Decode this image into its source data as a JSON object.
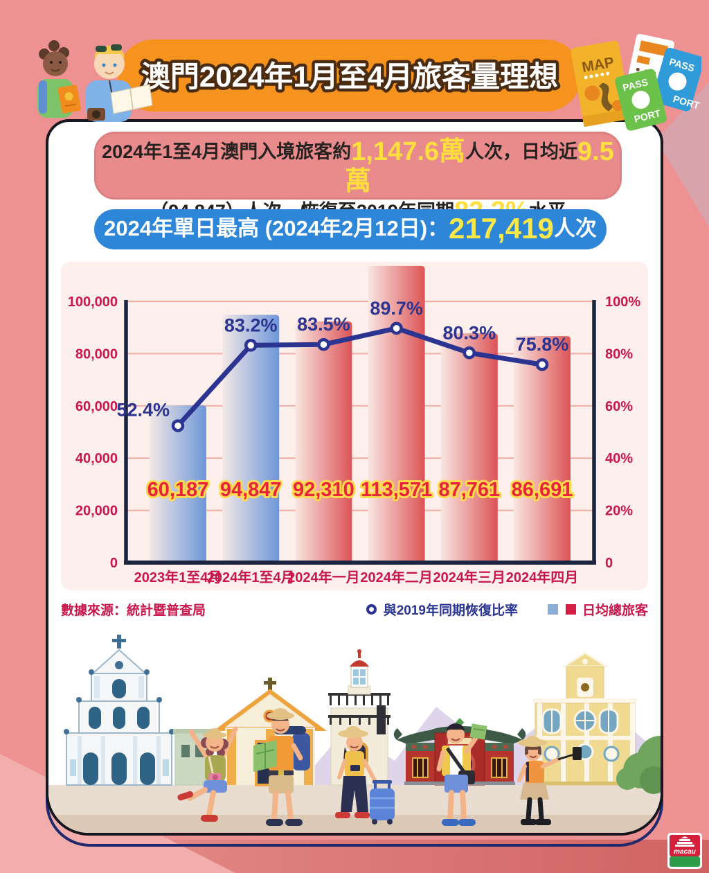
{
  "header": {
    "title": "澳門2024年1月至4月旅客量理想"
  },
  "summary": {
    "line1": [
      {
        "t": "2024年1至4月澳門入境旅客約",
        "em": false
      },
      {
        "t": "1,147.6萬",
        "em": true
      },
      {
        "t": "人次，日均近",
        "em": false
      },
      {
        "t": "9.5萬",
        "em": true
      }
    ],
    "line2": [
      {
        "t": "（94,847）人次，恢復至2019年同期",
        "em": false
      },
      {
        "t": "83.2%",
        "em": true
      },
      {
        "t": "水平",
        "em": false
      }
    ]
  },
  "record": {
    "segments": [
      {
        "t": "2024年單日最高 (2024年2月12日)：",
        "em": false
      },
      {
        "t": "217,419",
        "em": true
      },
      {
        "t": "人次",
        "em": false
      }
    ]
  },
  "chart_data": {
    "type": "bar+line",
    "categories": [
      "2023年1至4月",
      "2024年1至4月",
      "2024年一月",
      "2024年二月",
      "2024年三月",
      "2024年四月"
    ],
    "series": [
      {
        "name": "日均總旅客",
        "type": "bar",
        "values": [
          60187,
          94847,
          92310,
          113571,
          87761,
          86691
        ],
        "color_groups": [
          "blue",
          "blue",
          "red",
          "red",
          "red",
          "red"
        ]
      },
      {
        "name": "與2019年同期恢復比率",
        "type": "line",
        "values_pct": [
          52.4,
          83.2,
          83.5,
          89.7,
          80.3,
          75.8
        ]
      }
    ],
    "left_axis": {
      "ticks": [
        "0",
        "20,000",
        "40,000",
        "60,000",
        "80,000",
        "100,000"
      ],
      "max": 100000
    },
    "right_axis": {
      "ticks": [
        "0",
        "20%",
        "40%",
        "60%",
        "80%",
        "100%"
      ],
      "max": 100
    },
    "grid": true,
    "legend_position": "bottom-right",
    "title": ""
  },
  "source": "數據來源：統計暨普查局",
  "legend": {
    "line_label": "與2019年同期恢復比率",
    "bar_label": "日均總旅客"
  },
  "decorations": {
    "map_label": "MAP",
    "passport_green_top": "PASS",
    "passport_green_bottom": "PORT",
    "passport_blue_top": "PASS",
    "passport_blue_bottom": "PORT",
    "logo_text": "macau"
  },
  "colors": {
    "background": "#ee9192",
    "banner_orange": "#f6921e",
    "summary_pink": "#e98b8d",
    "record_blue": "#2e86d8",
    "chart_panel": "#fcefec",
    "axis_crimson": "#c8174d",
    "line_navy": "#2b3490",
    "bar_blue_end": "#6e96d9",
    "bar_red_end": "#dc5456",
    "value_label_red": "#e8243c",
    "value_label_outline": "#ffd94d",
    "highlight_yellow": "#ffdf3d"
  }
}
